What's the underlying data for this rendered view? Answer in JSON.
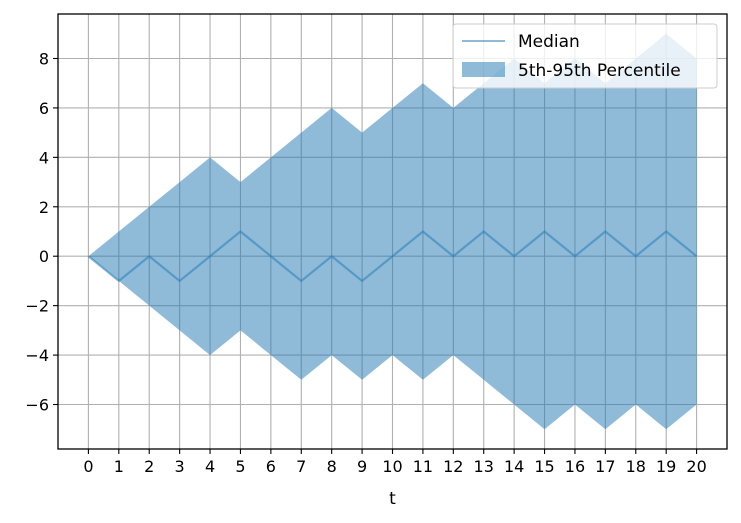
{
  "chart_data": {
    "type": "area",
    "title": "",
    "xlabel": "t",
    "ylabel": "",
    "xlim": [
      -1,
      21
    ],
    "ylim": [
      -7.8,
      9.8
    ],
    "xticks": [
      0,
      1,
      2,
      3,
      4,
      5,
      6,
      7,
      8,
      9,
      10,
      11,
      12,
      13,
      14,
      15,
      16,
      17,
      18,
      19,
      20
    ],
    "yticks": [
      -6,
      -4,
      -2,
      0,
      2,
      4,
      6,
      8
    ],
    "grid": true,
    "legend_position": "top-right",
    "x": [
      0,
      1,
      2,
      3,
      4,
      5,
      6,
      7,
      8,
      9,
      10,
      11,
      12,
      13,
      14,
      15,
      16,
      17,
      18,
      19,
      20
    ],
    "series": [
      {
        "name": "Median",
        "kind": "line",
        "color": "#1f77b4",
        "values": [
          0,
          -1,
          0,
          -1,
          0,
          1,
          0,
          -1,
          0,
          -1,
          0,
          1,
          0,
          1,
          0,
          1,
          0,
          1,
          0,
          1,
          0
        ]
      },
      {
        "name": "5th-95th Percentile",
        "kind": "band",
        "color": "#1f77b4",
        "upper": [
          0,
          1,
          2,
          3,
          4,
          3,
          4,
          5,
          6,
          5,
          6,
          7,
          6,
          7,
          8,
          7,
          8,
          7,
          8,
          9,
          8
        ],
        "lower": [
          0,
          -1,
          -2,
          -3,
          -4,
          -3,
          -4,
          -5,
          -4,
          -5,
          -4,
          -5,
          -4,
          -5,
          -6,
          -7,
          -6,
          -7,
          -6,
          -7,
          -6
        ]
      }
    ]
  }
}
